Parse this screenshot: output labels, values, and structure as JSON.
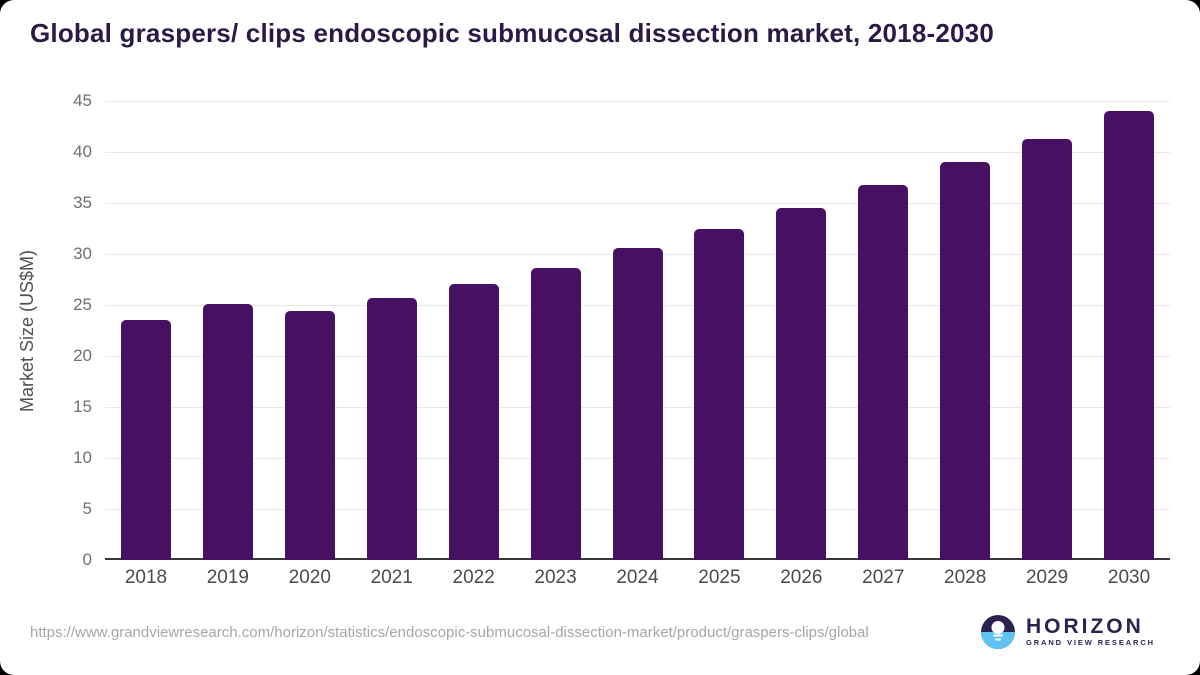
{
  "title": "Global graspers/ clips endoscopic submucosal dissection market, 2018-2030",
  "colors": {
    "bar": "#481063",
    "title": "#2b1a46",
    "grid": "#e9e9e9",
    "axis": "#383838",
    "y_tick": "#6f6f6f",
    "x_tick": "#4a4a4a",
    "url": "#a6a6a6",
    "logo_purple": "#2d2150",
    "logo_blue": "#5ec3f2"
  },
  "chart_data": {
    "type": "bar",
    "title": "Global graspers/ clips endoscopic submucosal dissection market, 2018-2030",
    "categories": [
      "2018",
      "2019",
      "2020",
      "2021",
      "2022",
      "2023",
      "2024",
      "2025",
      "2026",
      "2027",
      "2028",
      "2029",
      "2030"
    ],
    "values": [
      23.5,
      25.1,
      24.4,
      25.7,
      27.1,
      28.6,
      30.6,
      32.5,
      34.5,
      36.8,
      39.0,
      41.3,
      44.0
    ],
    "xlabel": "",
    "ylabel": "Market Size (US$M)",
    "ylim": [
      0,
      45
    ],
    "yticks": [
      0,
      5,
      10,
      15,
      20,
      25,
      30,
      35,
      40,
      45
    ],
    "grid": "horizontal",
    "legend": "none",
    "bar_color": "#481063"
  },
  "footer": {
    "source_url": "https://www.grandviewresearch.com/horizon/statistics/endoscopic-submucosal-dissection-market/product/graspers-clips/global",
    "logo": {
      "name": "HORIZON",
      "subtitle": "GRAND VIEW RESEARCH"
    }
  }
}
